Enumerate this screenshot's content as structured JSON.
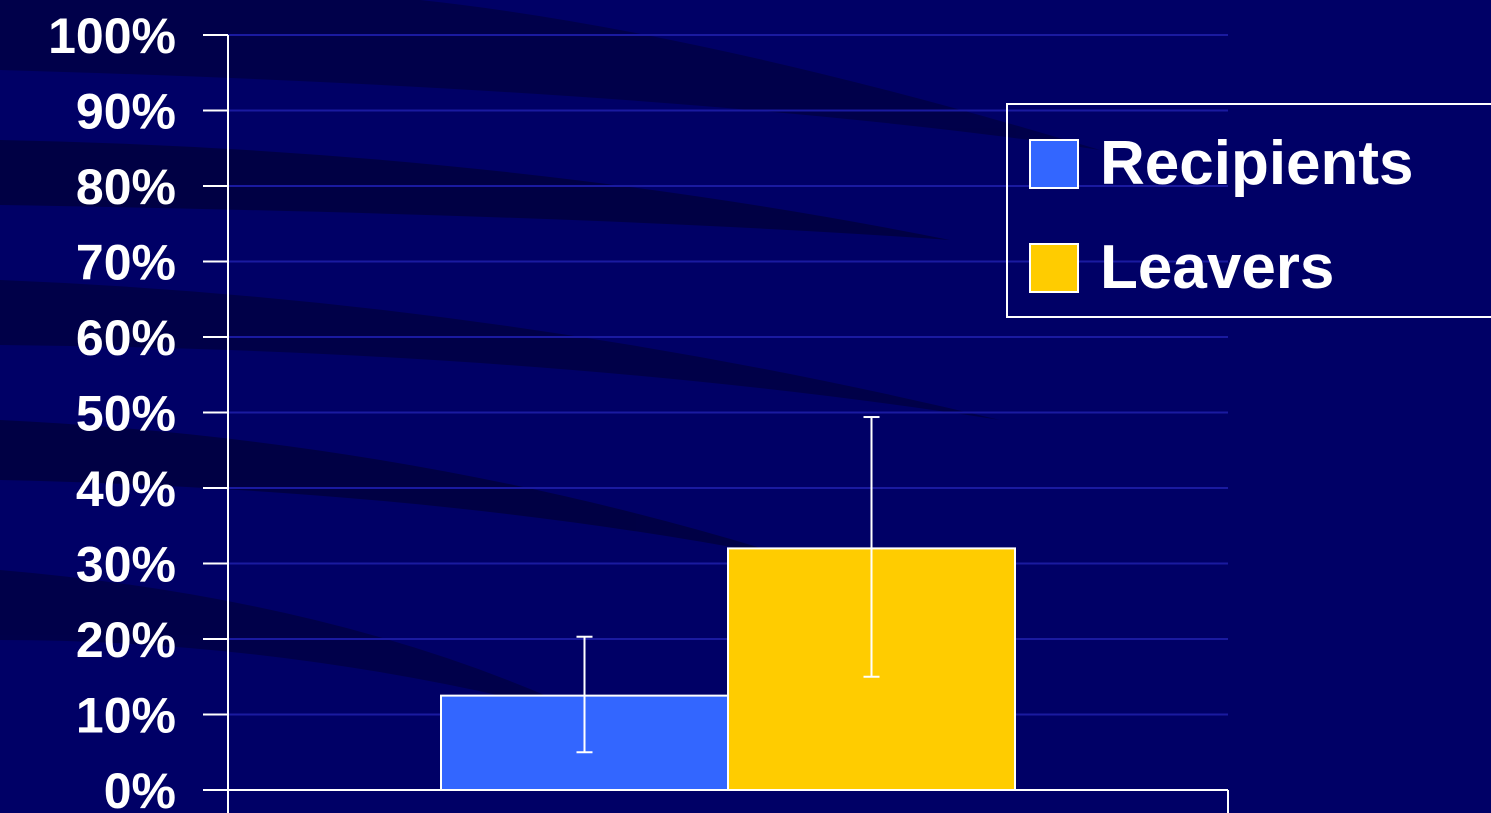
{
  "chart_data": {
    "type": "bar",
    "categories": [
      ""
    ],
    "series": [
      {
        "name": "Recipients",
        "values": [
          12.5
        ],
        "error_low": [
          5
        ],
        "error_high": [
          20.3
        ],
        "color": "#3366ff"
      },
      {
        "name": "Leavers",
        "values": [
          32
        ],
        "error_low": [
          15
        ],
        "error_high": [
          49.4
        ],
        "color": "#ffcc00"
      }
    ],
    "ylim": [
      0,
      100
    ],
    "yticks": [
      0,
      10,
      20,
      30,
      40,
      50,
      60,
      70,
      80,
      90,
      100
    ],
    "ytick_labels": [
      "0%",
      "10%",
      "20%",
      "30%",
      "40%",
      "50%",
      "60%",
      "70%",
      "80%",
      "90%",
      "100%"
    ],
    "title": "",
    "xlabel": "",
    "ylabel": "",
    "grid": true,
    "legend_position": "top-right",
    "colors": {
      "background": "#000066",
      "gridline": "#1a1aa0",
      "axis": "#ffffff",
      "text": "#ffffff"
    }
  }
}
